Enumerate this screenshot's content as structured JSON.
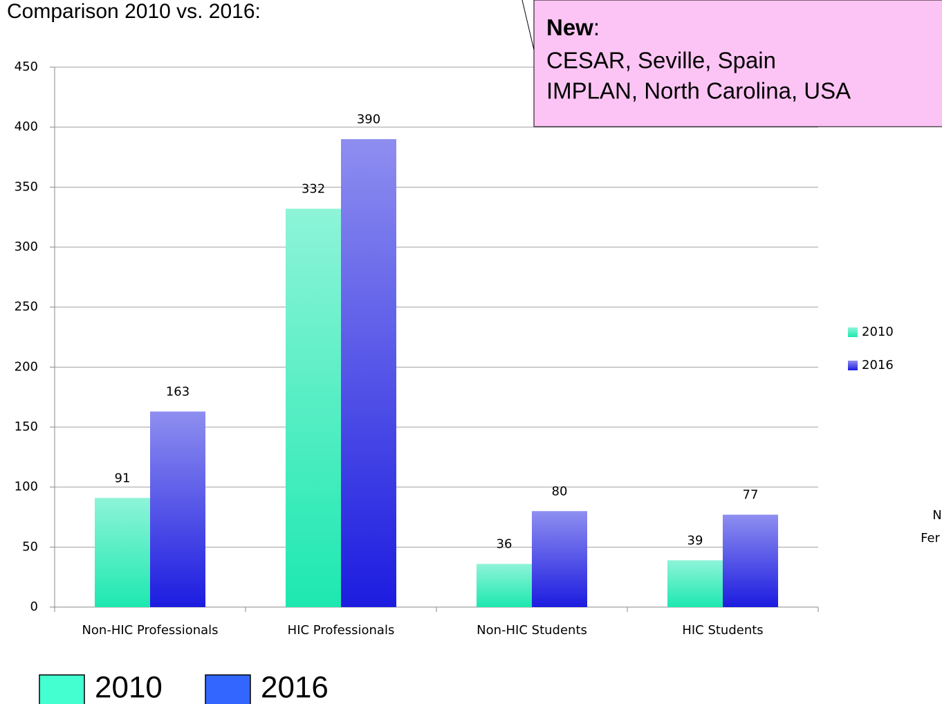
{
  "chart_data": {
    "type": "bar",
    "title": "Comparison 2010 vs. 2016:",
    "categories": [
      "Non-HIC Professionals",
      "HIC Professionals",
      "Non-HIC Students",
      "HIC Students"
    ],
    "series": [
      {
        "name": "2010",
        "color": "#1de8b0",
        "values": [
          91,
          332,
          36,
          39
        ]
      },
      {
        "name": "2016",
        "color": "#1c1ce0",
        "values": [
          163,
          390,
          80,
          77
        ]
      }
    ],
    "ylim": [
      0,
      450
    ],
    "yticks": [
      0,
      50,
      100,
      150,
      200,
      250,
      300,
      350,
      400,
      450
    ],
    "grid": true,
    "legend": "right",
    "callout": {
      "heading": "New",
      "lines": [
        "CESAR, Seville, Spain",
        "IMPLAN, North Carolina, USA"
      ]
    },
    "legend_boxes": [
      {
        "label": "2010",
        "color": "#44ffd0"
      },
      {
        "label": "2016",
        "color": "#3366ff"
      }
    ],
    "annotations": [
      "N",
      "Fer"
    ]
  }
}
